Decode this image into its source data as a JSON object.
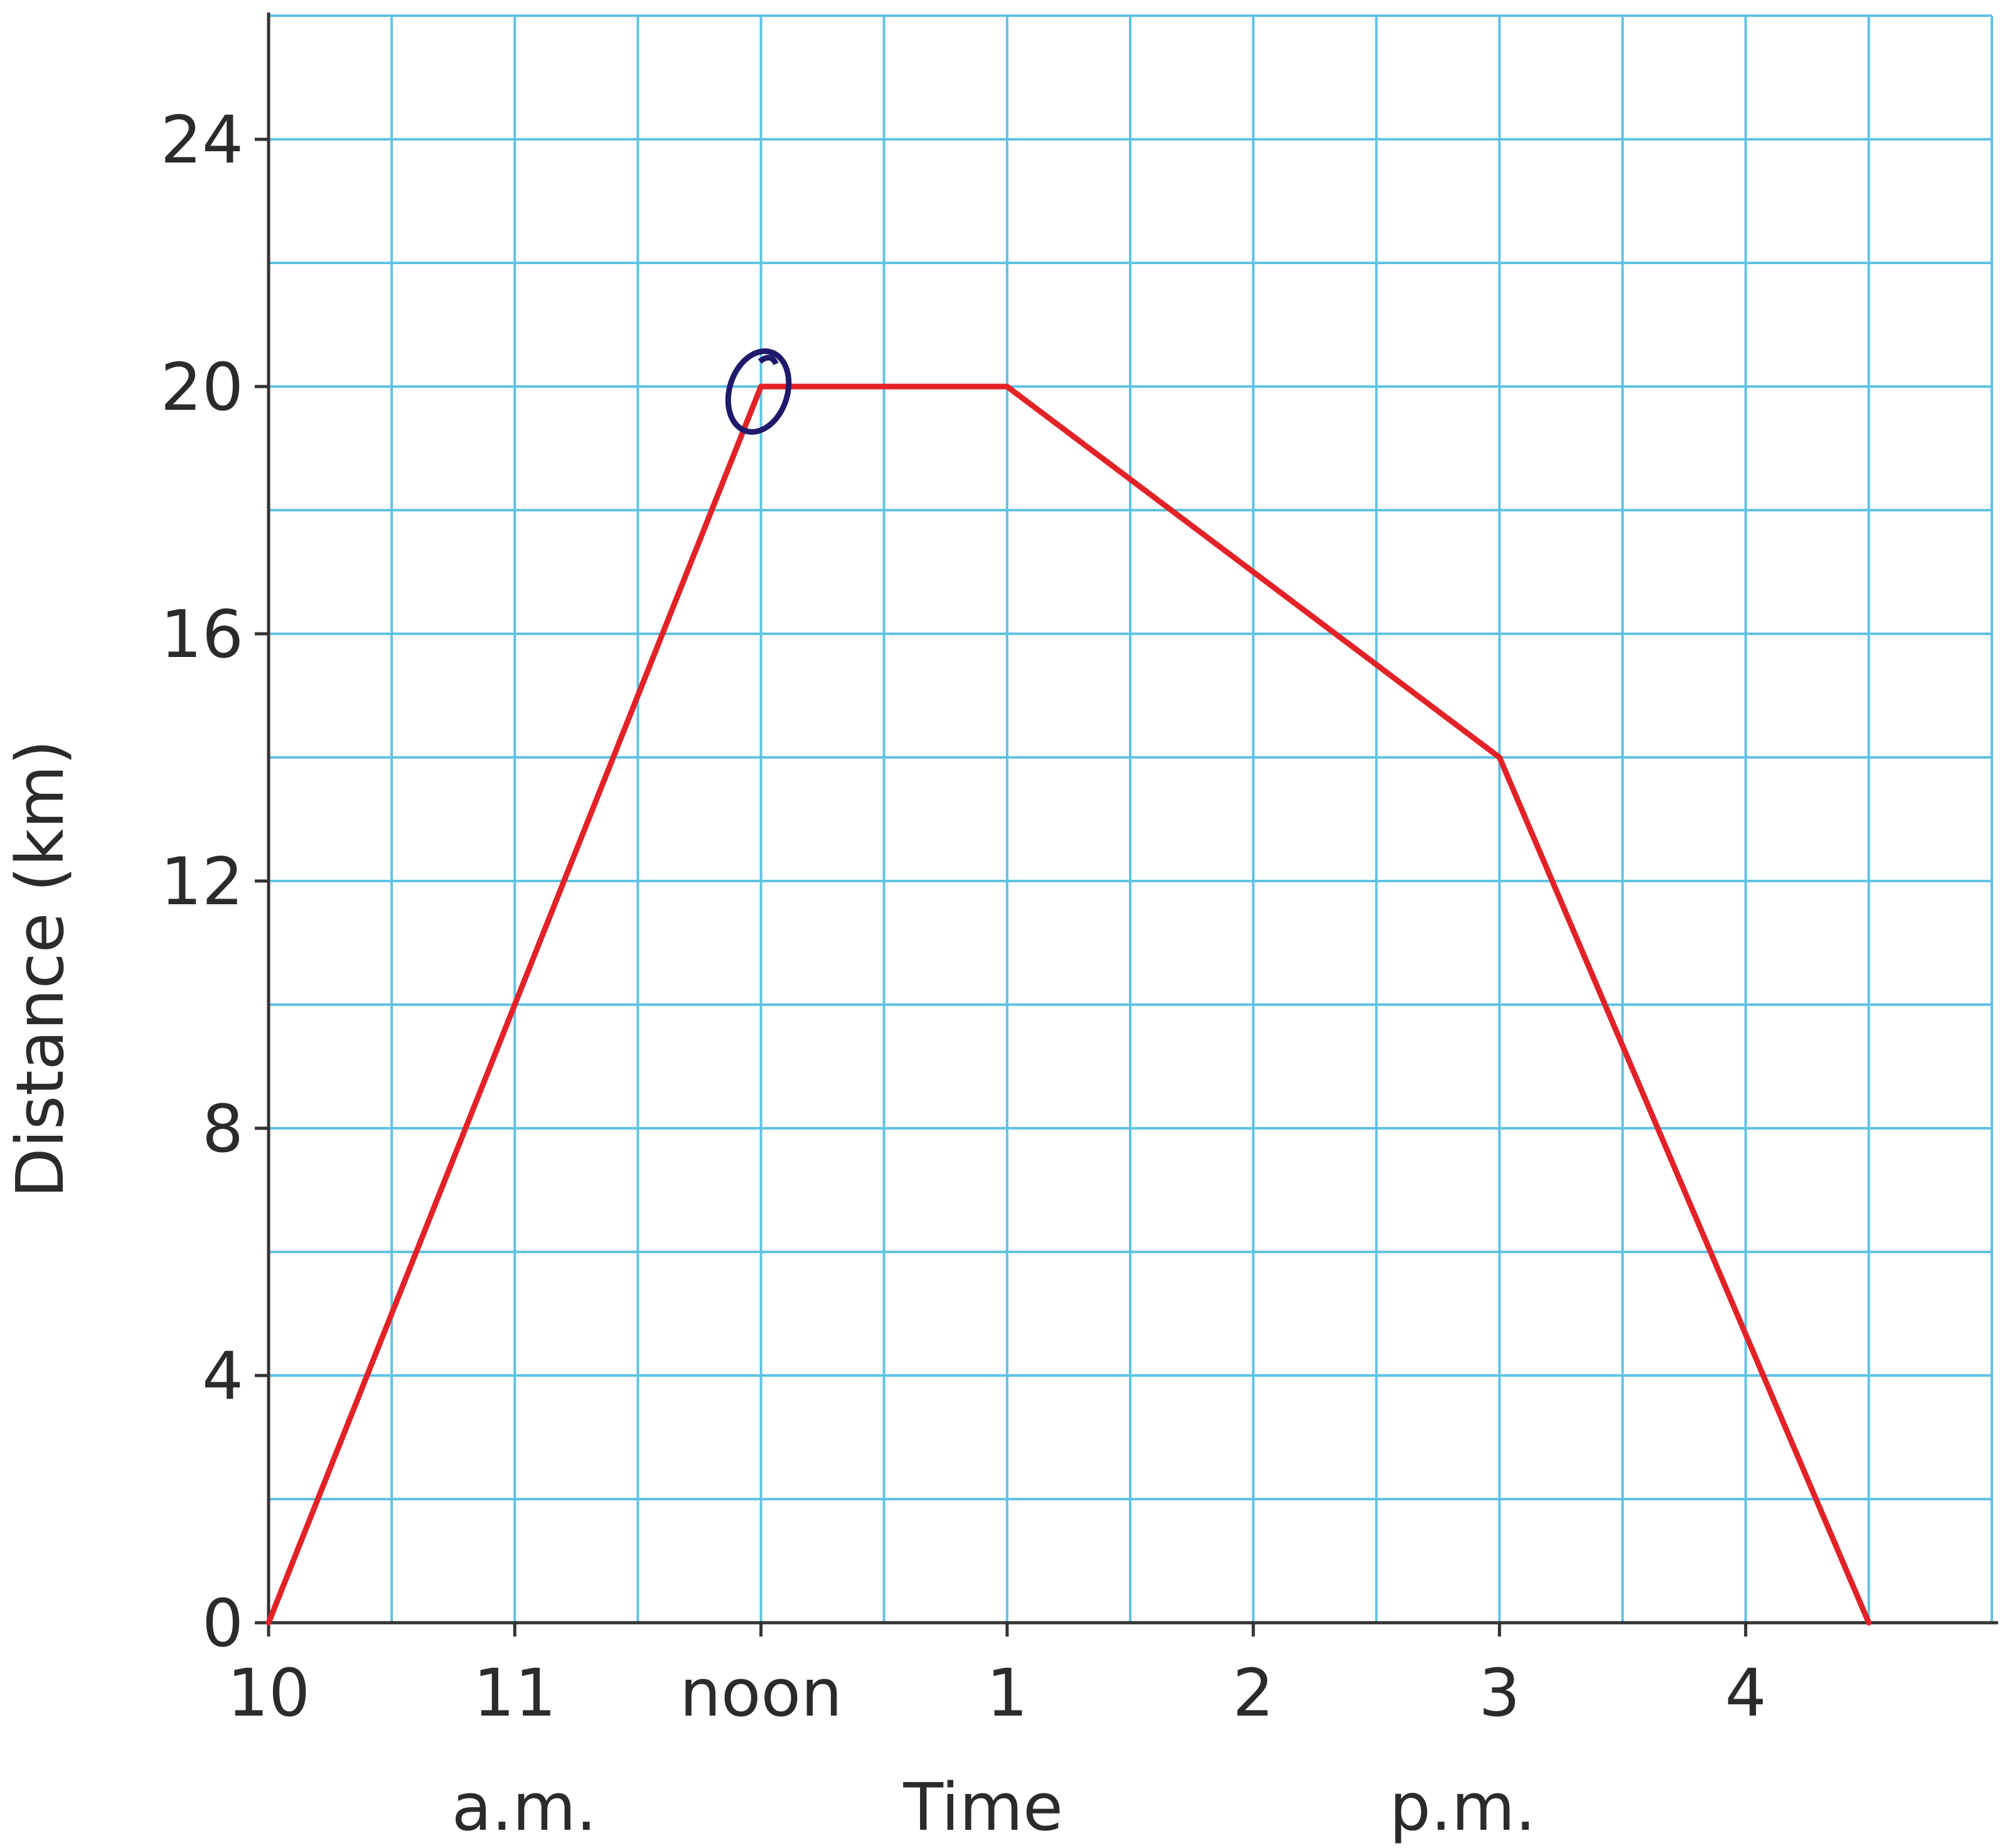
{
  "chart_data": {
    "type": "line",
    "title": "",
    "xlabel": "Time",
    "ylabel": "Distance (km)",
    "x_sublabels": [
      "a.m.",
      "p.m."
    ],
    "xlim": [
      10,
      17
    ],
    "ylim": [
      0,
      26
    ],
    "x_ticks": [
      {
        "value": 10,
        "label": "10"
      },
      {
        "value": 11,
        "label": "11"
      },
      {
        "value": 12,
        "label": "noon"
      },
      {
        "value": 13,
        "label": "1"
      },
      {
        "value": 14,
        "label": "2"
      },
      {
        "value": 15,
        "label": "3"
      },
      {
        "value": 16,
        "label": "4"
      }
    ],
    "y_ticks": [
      0,
      4,
      8,
      12,
      16,
      20,
      24
    ],
    "grid": true,
    "grid_step_x": 0.5,
    "grid_step_y": 2,
    "series": [
      {
        "color": "#e32227",
        "x": [
          10,
          12,
          13,
          15,
          16.5
        ],
        "y": [
          0,
          20,
          20,
          14,
          0
        ]
      }
    ],
    "annotations": [
      {
        "type": "hand-drawn-circle",
        "x": 12,
        "y": 20,
        "color": "#1f1a6b"
      }
    ]
  }
}
